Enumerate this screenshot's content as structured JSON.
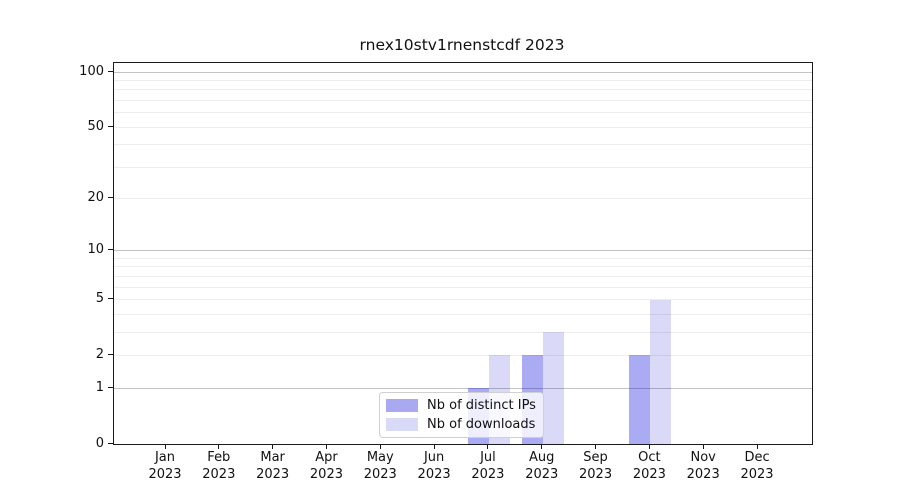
{
  "chart_data": {
    "type": "bar",
    "title": "rnex10stv1rnenstcdf 2023",
    "months": [
      "Jan",
      "Feb",
      "Mar",
      "Apr",
      "May",
      "Jun",
      "Jul",
      "Aug",
      "Sep",
      "Oct",
      "Nov",
      "Dec"
    ],
    "year_label": "2023",
    "categories": [
      "Jan 2023",
      "Feb 2023",
      "Mar 2023",
      "Apr 2023",
      "May 2023",
      "Jun 2023",
      "Jul 2023",
      "Aug 2023",
      "Sep 2023",
      "Oct 2023",
      "Nov 2023",
      "Dec 2023"
    ],
    "series": [
      {
        "name": "Nb of distinct IPs",
        "color": "#a9a9f2",
        "color_rgba": "rgba(10,10,220,0.34)",
        "values": [
          0,
          0,
          0,
          0,
          0,
          0,
          1,
          2,
          0,
          2,
          0,
          0
        ]
      },
      {
        "name": "Nb of downloads",
        "color": "#d9d9f8",
        "color_rgba": "rgba(10,10,210,0.15)",
        "values": [
          0,
          0,
          0,
          0,
          0,
          0,
          2,
          3,
          0,
          5,
          0,
          0
        ]
      }
    ],
    "y_scale": "log1p",
    "ylim": [
      0,
      112
    ],
    "y_ticks": [
      {
        "v": 100,
        "label": "100"
      },
      {
        "v": 50,
        "label": "50"
      },
      {
        "v": 20,
        "label": "20"
      },
      {
        "v": 10,
        "label": "10"
      },
      {
        "v": 5,
        "label": "5"
      },
      {
        "v": 2,
        "label": "2"
      },
      {
        "v": 1,
        "label": "1"
      },
      {
        "v": 0,
        "label": "0"
      }
    ],
    "y_major_gridlines": [
      1,
      10,
      100
    ],
    "y_minor_gridlines": [
      2,
      3,
      4,
      5,
      6,
      7,
      8,
      9,
      20,
      30,
      40,
      50,
      60,
      70,
      80,
      90
    ],
    "grid": true,
    "legend_position": "lower center",
    "gridline_major_color": "#c3c3c3",
    "gridline_minor_color": "#ededed"
  }
}
